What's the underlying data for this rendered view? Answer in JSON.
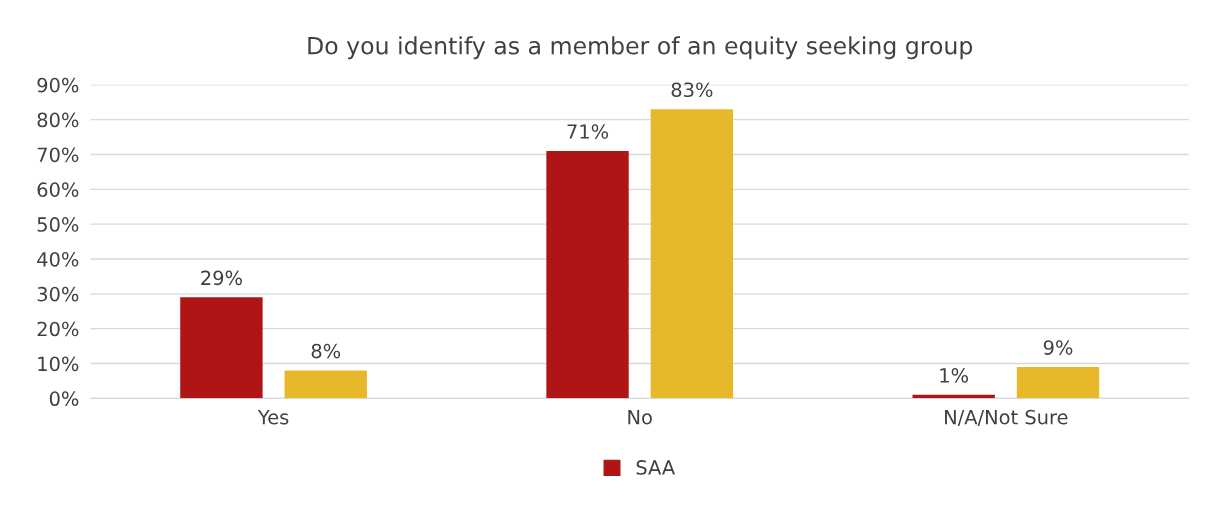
{
  "chart_data": {
    "type": "bar",
    "title": "Do you identify as a member of an equity seeking group",
    "categories": [
      "Yes",
      "No",
      "N/A/Not Sure"
    ],
    "series": [
      {
        "name": "SAA",
        "color": "#b01515",
        "values": [
          29,
          71,
          1
        ],
        "value_labels": [
          "29%",
          "71%",
          "1%"
        ]
      },
      {
        "color": "#e6b82a",
        "values": [
          8,
          83,
          9
        ],
        "value_labels": [
          "8%",
          "83%",
          "9%"
        ]
      }
    ],
    "ylim": [
      0,
      90
    ],
    "yticks": [
      {
        "value": 0,
        "label": "0%"
      },
      {
        "value": 10,
        "label": "10%"
      },
      {
        "value": 20,
        "label": "20%"
      },
      {
        "value": 30,
        "label": "30%"
      },
      {
        "value": 40,
        "label": "40%"
      },
      {
        "value": 50,
        "label": "50%"
      },
      {
        "value": 60,
        "label": "60%"
      },
      {
        "value": 70,
        "label": "70%"
      },
      {
        "value": 80,
        "label": "80%"
      },
      {
        "value": 90,
        "label": "90%"
      }
    ],
    "grid": "y",
    "legend": "bottom"
  }
}
